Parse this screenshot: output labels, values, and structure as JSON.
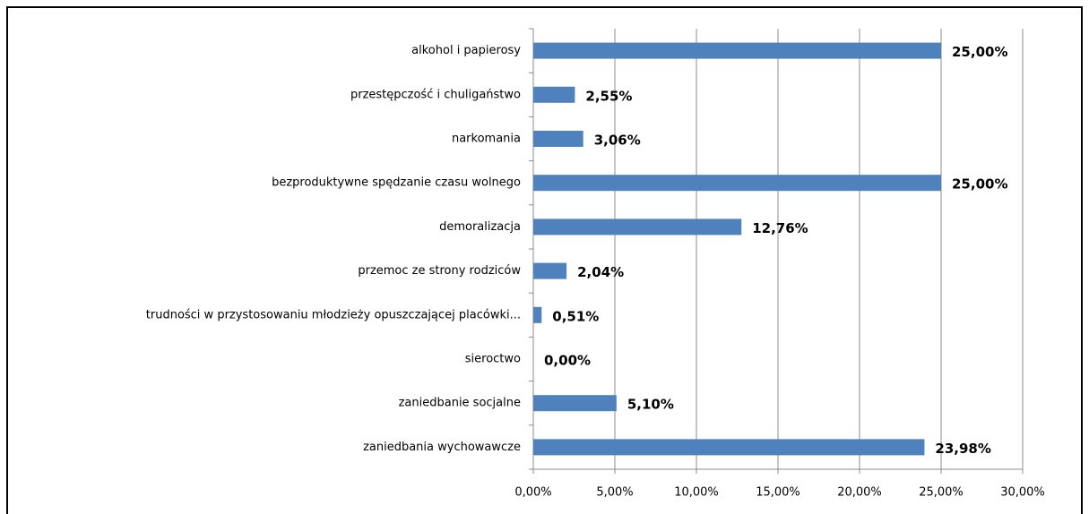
{
  "chart_data": {
    "type": "barh",
    "categories": [
      "alkohol i papierosy",
      "przestępczość i chuligaństwo",
      "narkomania",
      "bezproduktywne spędzanie czasu wolnego",
      "demoralizacja",
      "przemoc ze strony rodziców",
      "trudności w przystosowaniu młodzieży opuszczającej placówki...",
      "sieroctwo",
      "zaniedbanie socjalne",
      "zaniedbania wychowawcze"
    ],
    "values": [
      25.0,
      2.55,
      3.06,
      25.0,
      12.76,
      2.04,
      0.51,
      0.0,
      5.1,
      23.98
    ],
    "value_labels": [
      "25,00%",
      "2,55%",
      "3,06%",
      "25,00%",
      "12,76%",
      "2,04%",
      "0,51%",
      "0,00%",
      "5,10%",
      "23,98%"
    ],
    "color": "#4f81bd",
    "xlim": [
      0,
      30
    ],
    "xticks": [
      {
        "value": 0,
        "label": "0,00%"
      },
      {
        "value": 5,
        "label": "5,00%"
      },
      {
        "value": 10,
        "label": "10,00%"
      },
      {
        "value": 15,
        "label": "15,00%"
      },
      {
        "value": 20,
        "label": "20,00%"
      },
      {
        "value": 25,
        "label": "25,00%"
      },
      {
        "value": 30,
        "label": "30,00%"
      }
    ],
    "grid": true
  }
}
